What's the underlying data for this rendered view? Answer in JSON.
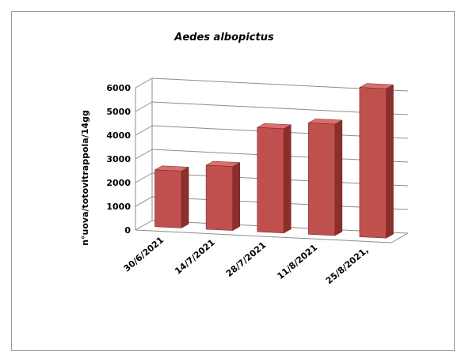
{
  "chart_data": {
    "type": "bar",
    "title": "Aedes albopictus",
    "xlabel": "",
    "ylabel": "n°uova/totovitrappola/14gg",
    "categories": [
      "30/6/2021",
      "14/7/2021",
      "28/7/2021",
      "11/8/2021",
      "25/8/2021,"
    ],
    "values": [
      2400,
      2700,
      4400,
      4700,
      6300
    ],
    "ylim": [
      0,
      6000
    ],
    "yticks": [
      0,
      1000,
      2000,
      3000,
      4000,
      5000,
      6000
    ],
    "grid": true,
    "legend": "none",
    "three_d": true,
    "colors": {
      "bar_front": "#c0504d",
      "bar_side": "#8b2e2c",
      "bar_top": "#d9706d"
    }
  }
}
